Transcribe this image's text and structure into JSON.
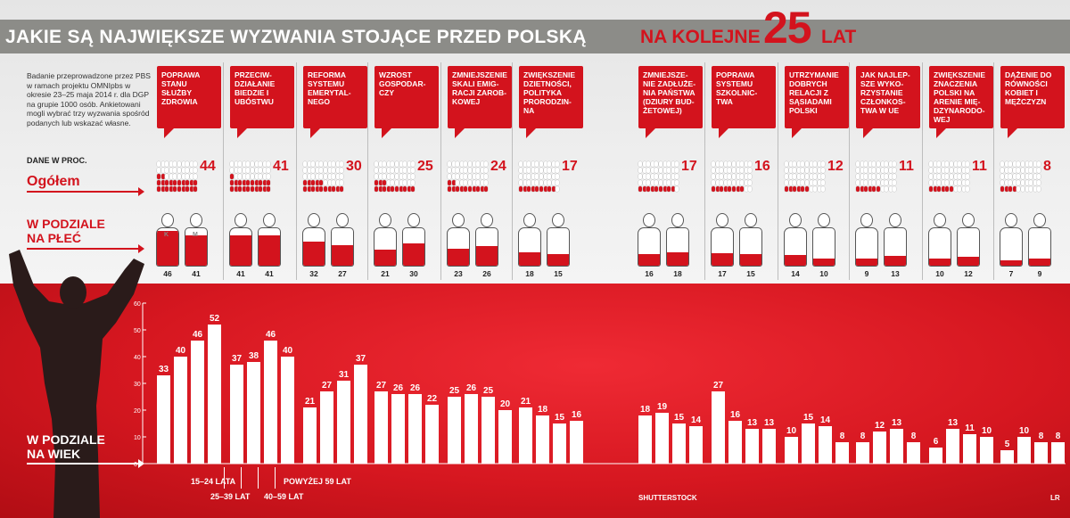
{
  "header": {
    "title_left": "JAKIE SĄ NAJWIĘKSZE WYZWANIA STOJĄCE PRZED POLSKĄ",
    "title_right": "NA KOLEJNE",
    "title_number": "25",
    "title_suffix": "LAT"
  },
  "intro_text": "Badanie przeprowadzone przez PBS w ramach projektu OMNIpbs w okresie 23–25 maja 2014 r. dla DGP na grupie 1000 osób. Ankietowani mogli wybrać trzy wyzwania spośród podanych lub wskazać własne.",
  "labels": {
    "units": "DANE W PROC.",
    "total": "Ogółem",
    "gender_line1": "W PODZIALE",
    "gender_line2": "NA PŁEĆ",
    "age_line1": "W PODZIALE",
    "age_line2": "NA WIEK",
    "female": "K",
    "male": "M",
    "age_groups": [
      "15–24 LATA",
      "25–39 LAT",
      "40–59 LAT",
      "POWYŻEJ 59 LAT"
    ],
    "credit_photo": "SHUTTERSTOCK",
    "credit_author": "LR"
  },
  "colors": {
    "accent": "#d3131d",
    "title_bar": "#8c8c88",
    "bar_white": "#ffffff"
  },
  "chart_data": {
    "type": "bar",
    "categories": [
      "Poprawa stanu służby zdrowia",
      "Przeciwdziałanie biedzie i ubóstwu",
      "Reforma systemu emerytalnego",
      "Wzrost gospodarczy",
      "Zmniejszenie skali emigracji zarobkowej",
      "Zwiększenie dzietności, polityka prorodzinna",
      "Zmniejszenie zadłużenia państwa (dziury budżetowej)",
      "Poprawa systemu szkolnictwa",
      "Utrzymanie dobrych relacji z sąsiadami Polski",
      "Jak najlepsze wykorzystanie członkostwa w UE",
      "Zwiększenie znaczenia Polski na arenie międzynarodowej",
      "Dążenie do równości kobiet i mężczyzn"
    ],
    "category_labels": [
      "POPRAWA STANU SŁUŻBY ZDROWIA",
      "PRZECIW-DZIAŁANIE BIEDZIE I UBÓSTWU",
      "REFORMA SYSTEMU EMERYTAL-NEGO",
      "WZROST GOSPODAR-CZY",
      "ZMNIEJSZENIE SKALI EMIG-RACJI ZAROB-KOWEJ",
      "ZWIĘKSZENIE DZIETNOŚCI, POLITYKA PRORODZIN-NA",
      "ZMNIEJSZE-NIE ZADŁUŻE-NIA PAŃSTWA (DZIURY BUD-ŻETOWEJ)",
      "POPRAWA SYSTEMU SZKOLNIC-TWA",
      "UTRZYMANIE DOBRYCH RELACJI Z SĄSIADAMI POLSKI",
      "JAK NAJLEP-SZE WYKO-RZYSTANIE CZŁONKOS-TWA W UE",
      "ZWIĘKSZENIE ZNACZENIA POLSKI NA ARENIE MIĘ-DZYNARODO-WEJ",
      "DĄŻENIE DO RÓWNOŚCI KOBIET I MĘŻCZYZN"
    ],
    "total": [
      44,
      41,
      30,
      25,
      24,
      17,
      17,
      16,
      12,
      11,
      11,
      8
    ],
    "gender": {
      "female": [
        46,
        41,
        32,
        21,
        23,
        18,
        16,
        17,
        14,
        9,
        10,
        7
      ],
      "male": [
        41,
        41,
        27,
        30,
        26,
        15,
        18,
        15,
        10,
        13,
        12,
        9
      ]
    },
    "age": {
      "groups": [
        "15–24 LATA",
        "25–39 LAT",
        "40–59 LAT",
        "POWYŻEJ 59 LAT"
      ],
      "values": [
        [
          33,
          40,
          46,
          52
        ],
        [
          37,
          38,
          46,
          40
        ],
        [
          21,
          27,
          31,
          37
        ],
        [
          27,
          26,
          26,
          22
        ],
        [
          25,
          26,
          25,
          20
        ],
        [
          21,
          18,
          15,
          16
        ],
        [
          18,
          19,
          15,
          14
        ],
        [
          27,
          16,
          13,
          13
        ],
        [
          10,
          15,
          14,
          8
        ],
        [
          8,
          12,
          13,
          8
        ],
        [
          6,
          13,
          11,
          10
        ],
        [
          5,
          10,
          8,
          8
        ]
      ],
      "ylim": [
        0,
        60
      ],
      "yticks": [
        0,
        10,
        20,
        30,
        40,
        50,
        60
      ]
    }
  }
}
